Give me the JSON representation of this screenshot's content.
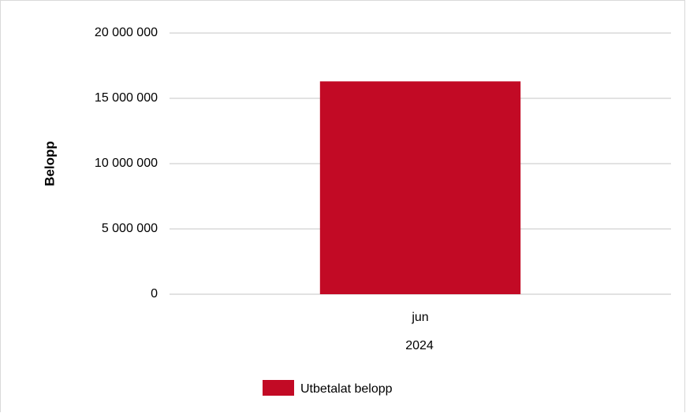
{
  "chart_data": {
    "type": "bar",
    "categories": [
      "jun"
    ],
    "category_group": "2024",
    "series": [
      {
        "name": "Utbetalat belopp",
        "values": [
          16300000
        ],
        "color": "#c20a25"
      }
    ],
    "ylabel": "Belopp",
    "xlabel": "",
    "ylim": [
      0,
      20000000
    ],
    "yticks": [
      0,
      5000000,
      10000000,
      15000000,
      20000000
    ],
    "ytick_labels": [
      "0",
      "5 000 000",
      "10 000 000",
      "15 000 000",
      "20 000 000"
    ],
    "grid": true,
    "gridline_color": "#d9d9d9",
    "legend_position": "bottom"
  }
}
